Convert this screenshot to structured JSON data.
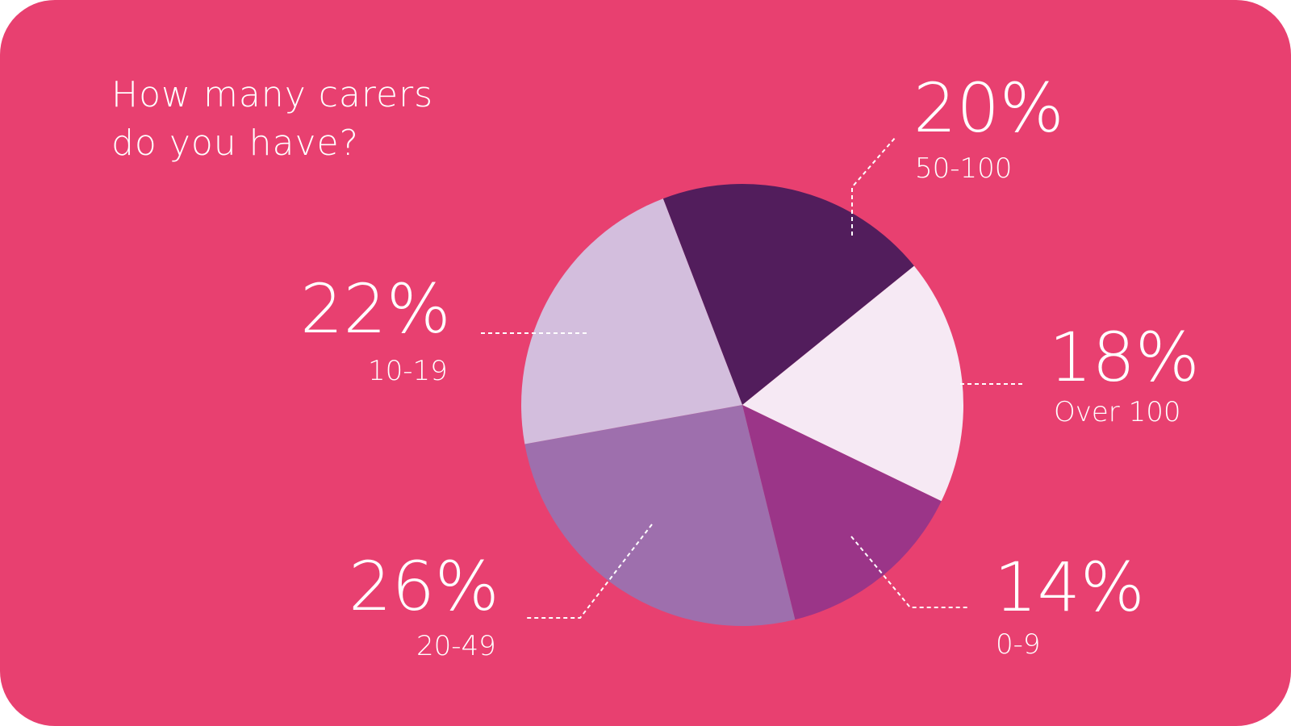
{
  "colors": {
    "background": "#e84070",
    "text": "#ffffff"
  },
  "title_lines": [
    "How many carers",
    "do you have?"
  ],
  "chart_data": {
    "type": "pie",
    "title": "How many carers do you have?",
    "slices": [
      {
        "label": "50-100",
        "value": 20,
        "value_label": "20%",
        "color": "#521d5c"
      },
      {
        "label": "Over 100",
        "value": 18,
        "value_label": "18%",
        "color": "#f6e9f4"
      },
      {
        "label": "0-9",
        "value": 14,
        "value_label": "14%",
        "color": "#9b3588"
      },
      {
        "label": "20-49",
        "value": 26,
        "value_label": "26%",
        "color": "#9e6fad"
      },
      {
        "label": "10-19",
        "value": 22,
        "value_label": "22%",
        "color": "#d3bedd"
      }
    ]
  }
}
